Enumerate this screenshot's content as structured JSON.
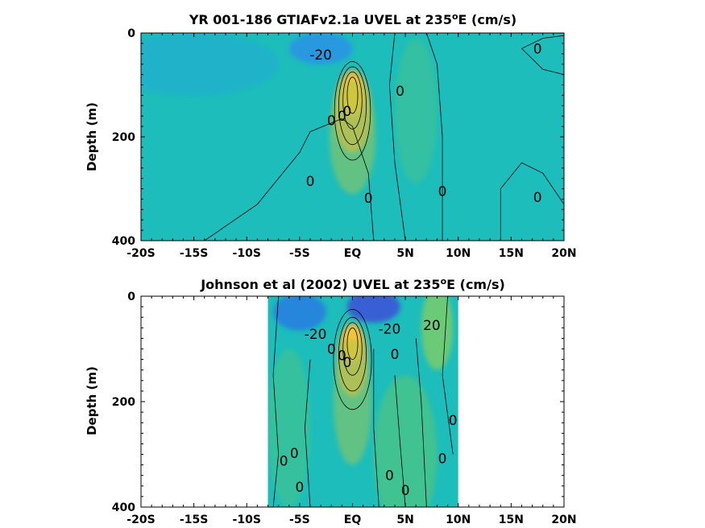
{
  "chart_data": [
    {
      "type": "heatmap",
      "title_main": "YR 001-186 GTIAFv2.1a UVEL at 235",
      "title_sup": "o",
      "title_tail": "E (cm/s)",
      "ylabel": "Depth (m)",
      "xlabel": "",
      "xlim": [
        -20,
        20
      ],
      "ylim": [
        0,
        400
      ],
      "y_reversed": true,
      "x_tick_values": [
        -20,
        -15,
        -10,
        -5,
        0,
        5,
        10,
        15,
        20
      ],
      "x_tick_labels": [
        "-20S",
        "-15S",
        "-10S",
        "-5S",
        "EQ",
        "5N",
        "10N",
        "15N",
        "20N"
      ],
      "y_tick_values": [
        0,
        200,
        400
      ],
      "y_tick_labels": [
        "0",
        "200",
        "400"
      ],
      "data_extent": [
        -20,
        20
      ],
      "background": "#1cbdbb",
      "features": [
        {
          "x": 0,
          "y": 120,
          "sx": 1.1,
          "sy": 40,
          "color": "#f5ea2a",
          "opacity": 1
        },
        {
          "x": 0,
          "y": 150,
          "sx": 1.8,
          "sy": 80,
          "color": "#f2b33d",
          "opacity": 0.7
        },
        {
          "x": 0,
          "y": 200,
          "sx": 2.2,
          "sy": 110,
          "color": "#a8c84a",
          "opacity": 0.5
        },
        {
          "x": -3,
          "y": 30,
          "sx": 3,
          "sy": 30,
          "color": "#2a8fe8",
          "opacity": 0.8
        },
        {
          "x": -15,
          "y": 60,
          "sx": 8,
          "sy": 60,
          "color": "#22a8d8",
          "opacity": 0.5
        },
        {
          "x": 6,
          "y": 150,
          "sx": 2,
          "sy": 140,
          "color": "#4cc48a",
          "opacity": 0.5
        }
      ],
      "contour_labels": [
        {
          "x": -3,
          "y": 42,
          "text": "-20"
        },
        {
          "x": 17.5,
          "y": 30,
          "text": "0"
        },
        {
          "x": 4.5,
          "y": 112,
          "text": "0"
        },
        {
          "x": -2,
          "y": 168,
          "text": "0"
        },
        {
          "x": -1,
          "y": 160,
          "text": "0"
        },
        {
          "x": -0.5,
          "y": 150,
          "text": "0"
        },
        {
          "x": -4,
          "y": 285,
          "text": "0"
        },
        {
          "x": 1.5,
          "y": 318,
          "text": "0"
        },
        {
          "x": 8.5,
          "y": 305,
          "text": "0"
        },
        {
          "x": 17.5,
          "y": 316,
          "text": "0"
        }
      ],
      "contour_lines": [
        [
          [
            -14,
            400
          ],
          [
            -9,
            330
          ],
          [
            -5,
            230
          ],
          [
            -4,
            190
          ],
          [
            -1,
            165
          ]
        ],
        [
          [
            -1,
            165
          ],
          [
            0,
            180
          ],
          [
            1.5,
            270
          ],
          [
            2,
            400
          ]
        ],
        [
          [
            4,
            0
          ],
          [
            3.5,
            100
          ],
          [
            4,
            250
          ],
          [
            5,
            400
          ]
        ],
        [
          [
            7,
            0
          ],
          [
            8,
            60
          ],
          [
            8.5,
            200
          ],
          [
            8.5,
            400
          ]
        ],
        [
          [
            20,
            5
          ],
          [
            18,
            10
          ],
          [
            16,
            30
          ],
          [
            18,
            70
          ],
          [
            20,
            80
          ]
        ],
        [
          [
            14,
            400
          ],
          [
            14,
            300
          ],
          [
            16,
            250
          ],
          [
            18,
            270
          ],
          [
            20,
            330
          ]
        ]
      ],
      "contour_ellipses": [
        {
          "x": 0,
          "y": 120,
          "rx": 0.5,
          "ry": 35
        },
        {
          "x": 0,
          "y": 130,
          "rx": 0.9,
          "ry": 55
        },
        {
          "x": 0,
          "y": 140,
          "rx": 1.3,
          "ry": 75
        },
        {
          "x": 0,
          "y": 150,
          "rx": 1.7,
          "ry": 95
        }
      ]
    },
    {
      "type": "heatmap",
      "title_main": "Johnson et al (2002) UVEL at 235",
      "title_sup": "o",
      "title_tail": "E (cm/s)",
      "ylabel": "Depth (m)",
      "xlabel": "",
      "xlim": [
        -20,
        20
      ],
      "ylim": [
        0,
        400
      ],
      "y_reversed": true,
      "x_tick_values": [
        -20,
        -15,
        -10,
        -5,
        0,
        5,
        10,
        15,
        20
      ],
      "x_tick_labels": [
        "-20S",
        "-15S",
        "-10S",
        "-5S",
        "EQ",
        "5N",
        "10N",
        "15N",
        "20N"
      ],
      "y_tick_values": [
        0,
        200,
        400
      ],
      "y_tick_labels": [
        "0",
        "200",
        "400"
      ],
      "data_extent": [
        -8,
        10
      ],
      "background": "#1cbdbb",
      "features": [
        {
          "x": 0,
          "y": 90,
          "sx": 0.9,
          "sy": 35,
          "color": "#f5ea2a",
          "opacity": 1
        },
        {
          "x": 0,
          "y": 120,
          "sx": 1.5,
          "sy": 70,
          "color": "#f2b33d",
          "opacity": 0.7
        },
        {
          "x": 0,
          "y": 200,
          "sx": 1.8,
          "sy": 120,
          "color": "#a8c84a",
          "opacity": 0.5
        },
        {
          "x": 2,
          "y": 20,
          "sx": 2.5,
          "sy": 30,
          "color": "#3c4fd8",
          "opacity": 0.85
        },
        {
          "x": -5,
          "y": 30,
          "sx": 2.5,
          "sy": 35,
          "color": "#2a6ee8",
          "opacity": 0.7
        },
        {
          "x": 8,
          "y": 60,
          "sx": 1.5,
          "sy": 80,
          "color": "#9fd24a",
          "opacity": 0.6
        },
        {
          "x": 5,
          "y": 300,
          "sx": 3,
          "sy": 150,
          "color": "#6cc860",
          "opacity": 0.45
        },
        {
          "x": -6,
          "y": 250,
          "sx": 2,
          "sy": 150,
          "color": "#5cc870",
          "opacity": 0.4
        }
      ],
      "contour_labels": [
        {
          "x": -3.5,
          "y": 72,
          "text": "-20"
        },
        {
          "x": 3.5,
          "y": 62,
          "text": "-20"
        },
        {
          "x": 7.5,
          "y": 55,
          "text": "20"
        },
        {
          "x": -2,
          "y": 100,
          "text": "0"
        },
        {
          "x": -1,
          "y": 112,
          "text": "0"
        },
        {
          "x": -0.5,
          "y": 125,
          "text": "0"
        },
        {
          "x": 4,
          "y": 110,
          "text": "0"
        },
        {
          "x": 9.5,
          "y": 235,
          "text": "0"
        },
        {
          "x": -6.5,
          "y": 312,
          "text": "0"
        },
        {
          "x": -5.5,
          "y": 298,
          "text": "0"
        },
        {
          "x": 8.5,
          "y": 308,
          "text": "0"
        },
        {
          "x": 3.5,
          "y": 340,
          "text": "0"
        },
        {
          "x": -5,
          "y": 362,
          "text": "0"
        },
        {
          "x": 5,
          "y": 368,
          "text": "0"
        }
      ],
      "contour_lines": [
        [
          [
            -7,
            0
          ],
          [
            -7.5,
            150
          ],
          [
            -7,
            300
          ],
          [
            -7.5,
            400
          ]
        ],
        [
          [
            -4,
            120
          ],
          [
            -4.5,
            250
          ],
          [
            -4,
            400
          ]
        ],
        [
          [
            2,
            100
          ],
          [
            2,
            250
          ],
          [
            2.5,
            400
          ]
        ],
        [
          [
            4,
            150
          ],
          [
            4.5,
            280
          ],
          [
            5,
            400
          ]
        ],
        [
          [
            6,
            80
          ],
          [
            6.5,
            200
          ],
          [
            7,
            400
          ]
        ],
        [
          [
            9,
            0
          ],
          [
            8.5,
            150
          ],
          [
            9.5,
            300
          ]
        ]
      ],
      "contour_ellipses": [
        {
          "x": 0,
          "y": 90,
          "rx": 0.5,
          "ry": 30
        },
        {
          "x": 0,
          "y": 100,
          "rx": 0.9,
          "ry": 50
        },
        {
          "x": 0,
          "y": 110,
          "rx": 1.3,
          "ry": 70
        },
        {
          "x": 0,
          "y": 120,
          "rx": 1.8,
          "ry": 95
        }
      ]
    }
  ]
}
